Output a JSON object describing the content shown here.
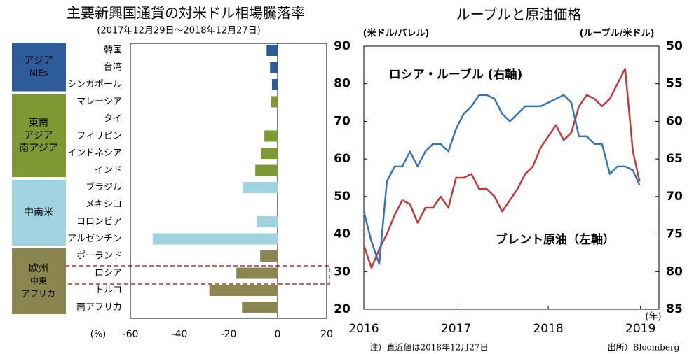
{
  "chart_data": [
    {
      "type": "bar",
      "orientation": "horizontal",
      "title": "主要新興国通貨の対米ドル相場騰落率",
      "subtitle": "(2017年12月29日～2018年12月27日)",
      "xlabel": "(%)",
      "xlim": [
        -60,
        20
      ],
      "xticks": [
        -60,
        -40,
        -20,
        0,
        20
      ],
      "groups": [
        {
          "label": [
            "アジア",
            "NIEs"
          ],
          "color": "#2e5c9a",
          "text_color": "#ffffff",
          "categories": [
            "韓国",
            "台湾",
            "シンガポール"
          ],
          "values": [
            -4.5,
            -3.1,
            -2.3
          ]
        },
        {
          "label": [
            "東南",
            "アジア",
            "南アジア"
          ],
          "color": "#7d9a35",
          "text_color": "#ffffff",
          "categories": [
            "マレーシア",
            "タイ",
            "フィリピン",
            "インドネシア",
            "インド"
          ],
          "values": [
            -2.6,
            0,
            -5.4,
            -6.8,
            -9.1
          ]
        },
        {
          "label": [
            "中南米"
          ],
          "color": "#9fd3e0",
          "text_color": "#000000",
          "categories": [
            "ブラジル",
            "メキシコ",
            "コロンビア",
            "アルゼンチン"
          ],
          "values": [
            -14.2,
            0,
            -8.5,
            -50.9
          ]
        },
        {
          "label": [
            "欧州",
            "中東",
            "アフリカ"
          ],
          "color": "#8b8650",
          "text_color": "#ffffff",
          "categories": [
            "ポーランド",
            "ロシア",
            "トルコ",
            "南アフリカ"
          ],
          "values": [
            -7.1,
            -16.8,
            -27.8,
            -14.5
          ]
        }
      ]
    },
    {
      "type": "line",
      "title": "ルーブルと原油価格",
      "ylabel": "(米ドル/バレル)",
      "y2label": "(ルーブル/米ドル)",
      "xlabel": "(年)",
      "xlim": [
        2016,
        2019.2
      ],
      "xticks": [
        2016,
        2017,
        2018,
        2019
      ],
      "ylim": [
        20,
        90
      ],
      "yticks": [
        20,
        30,
        40,
        50,
        60,
        70,
        80,
        90
      ],
      "ytick_color": "#c0393b",
      "y2lim": [
        50,
        85
      ],
      "y2ticks": [
        50,
        55,
        60,
        65,
        70,
        75,
        80,
        85
      ],
      "y2_inverted": true,
      "y2tick_color": "#3a74b8",
      "x": [
        2016,
        2016.083,
        2016.167,
        2016.25,
        2016.333,
        2016.417,
        2016.5,
        2016.583,
        2016.667,
        2016.75,
        2016.833,
        2016.917,
        2017,
        2017.083,
        2017.167,
        2017.25,
        2017.333,
        2017.417,
        2017.5,
        2017.583,
        2017.667,
        2017.75,
        2017.833,
        2017.917,
        2018,
        2018.083,
        2018.167,
        2018.25,
        2018.333,
        2018.417,
        2018.5,
        2018.583,
        2018.667,
        2018.75,
        2018.833,
        2018.917,
        2018.99
      ],
      "series": [
        {
          "name": "ブレント原油（左軸）",
          "color": "#c0393b",
          "axis": "y",
          "values": [
            37,
            31,
            36,
            40,
            45,
            49,
            48,
            43,
            47,
            47,
            50,
            47,
            55,
            55,
            56,
            52,
            52,
            50,
            46,
            49,
            52,
            56,
            58,
            63,
            66,
            69,
            65,
            67,
            74,
            77,
            76,
            74,
            76,
            80,
            84,
            62,
            54
          ]
        },
        {
          "name": "ロシア・ルーブル（右軸）",
          "color": "#3a74b8",
          "axis": "y2",
          "values": [
            72,
            76,
            79,
            68,
            66,
            66,
            64,
            66,
            64,
            63,
            63,
            64,
            61,
            59,
            58,
            56.5,
            56.5,
            57,
            59,
            60,
            59,
            58,
            58,
            58,
            57.5,
            57,
            56.5,
            57.5,
            62,
            62,
            63,
            63,
            67,
            66,
            66,
            66.5,
            68.5
          ]
        }
      ],
      "annotations": [
        "ロシア・ルーブル (右軸)",
        "ブレント原油（左軸）"
      ],
      "notes": [
        "注）直近値は2018年12月27日",
        "出所）Bloomberg"
      ]
    }
  ]
}
